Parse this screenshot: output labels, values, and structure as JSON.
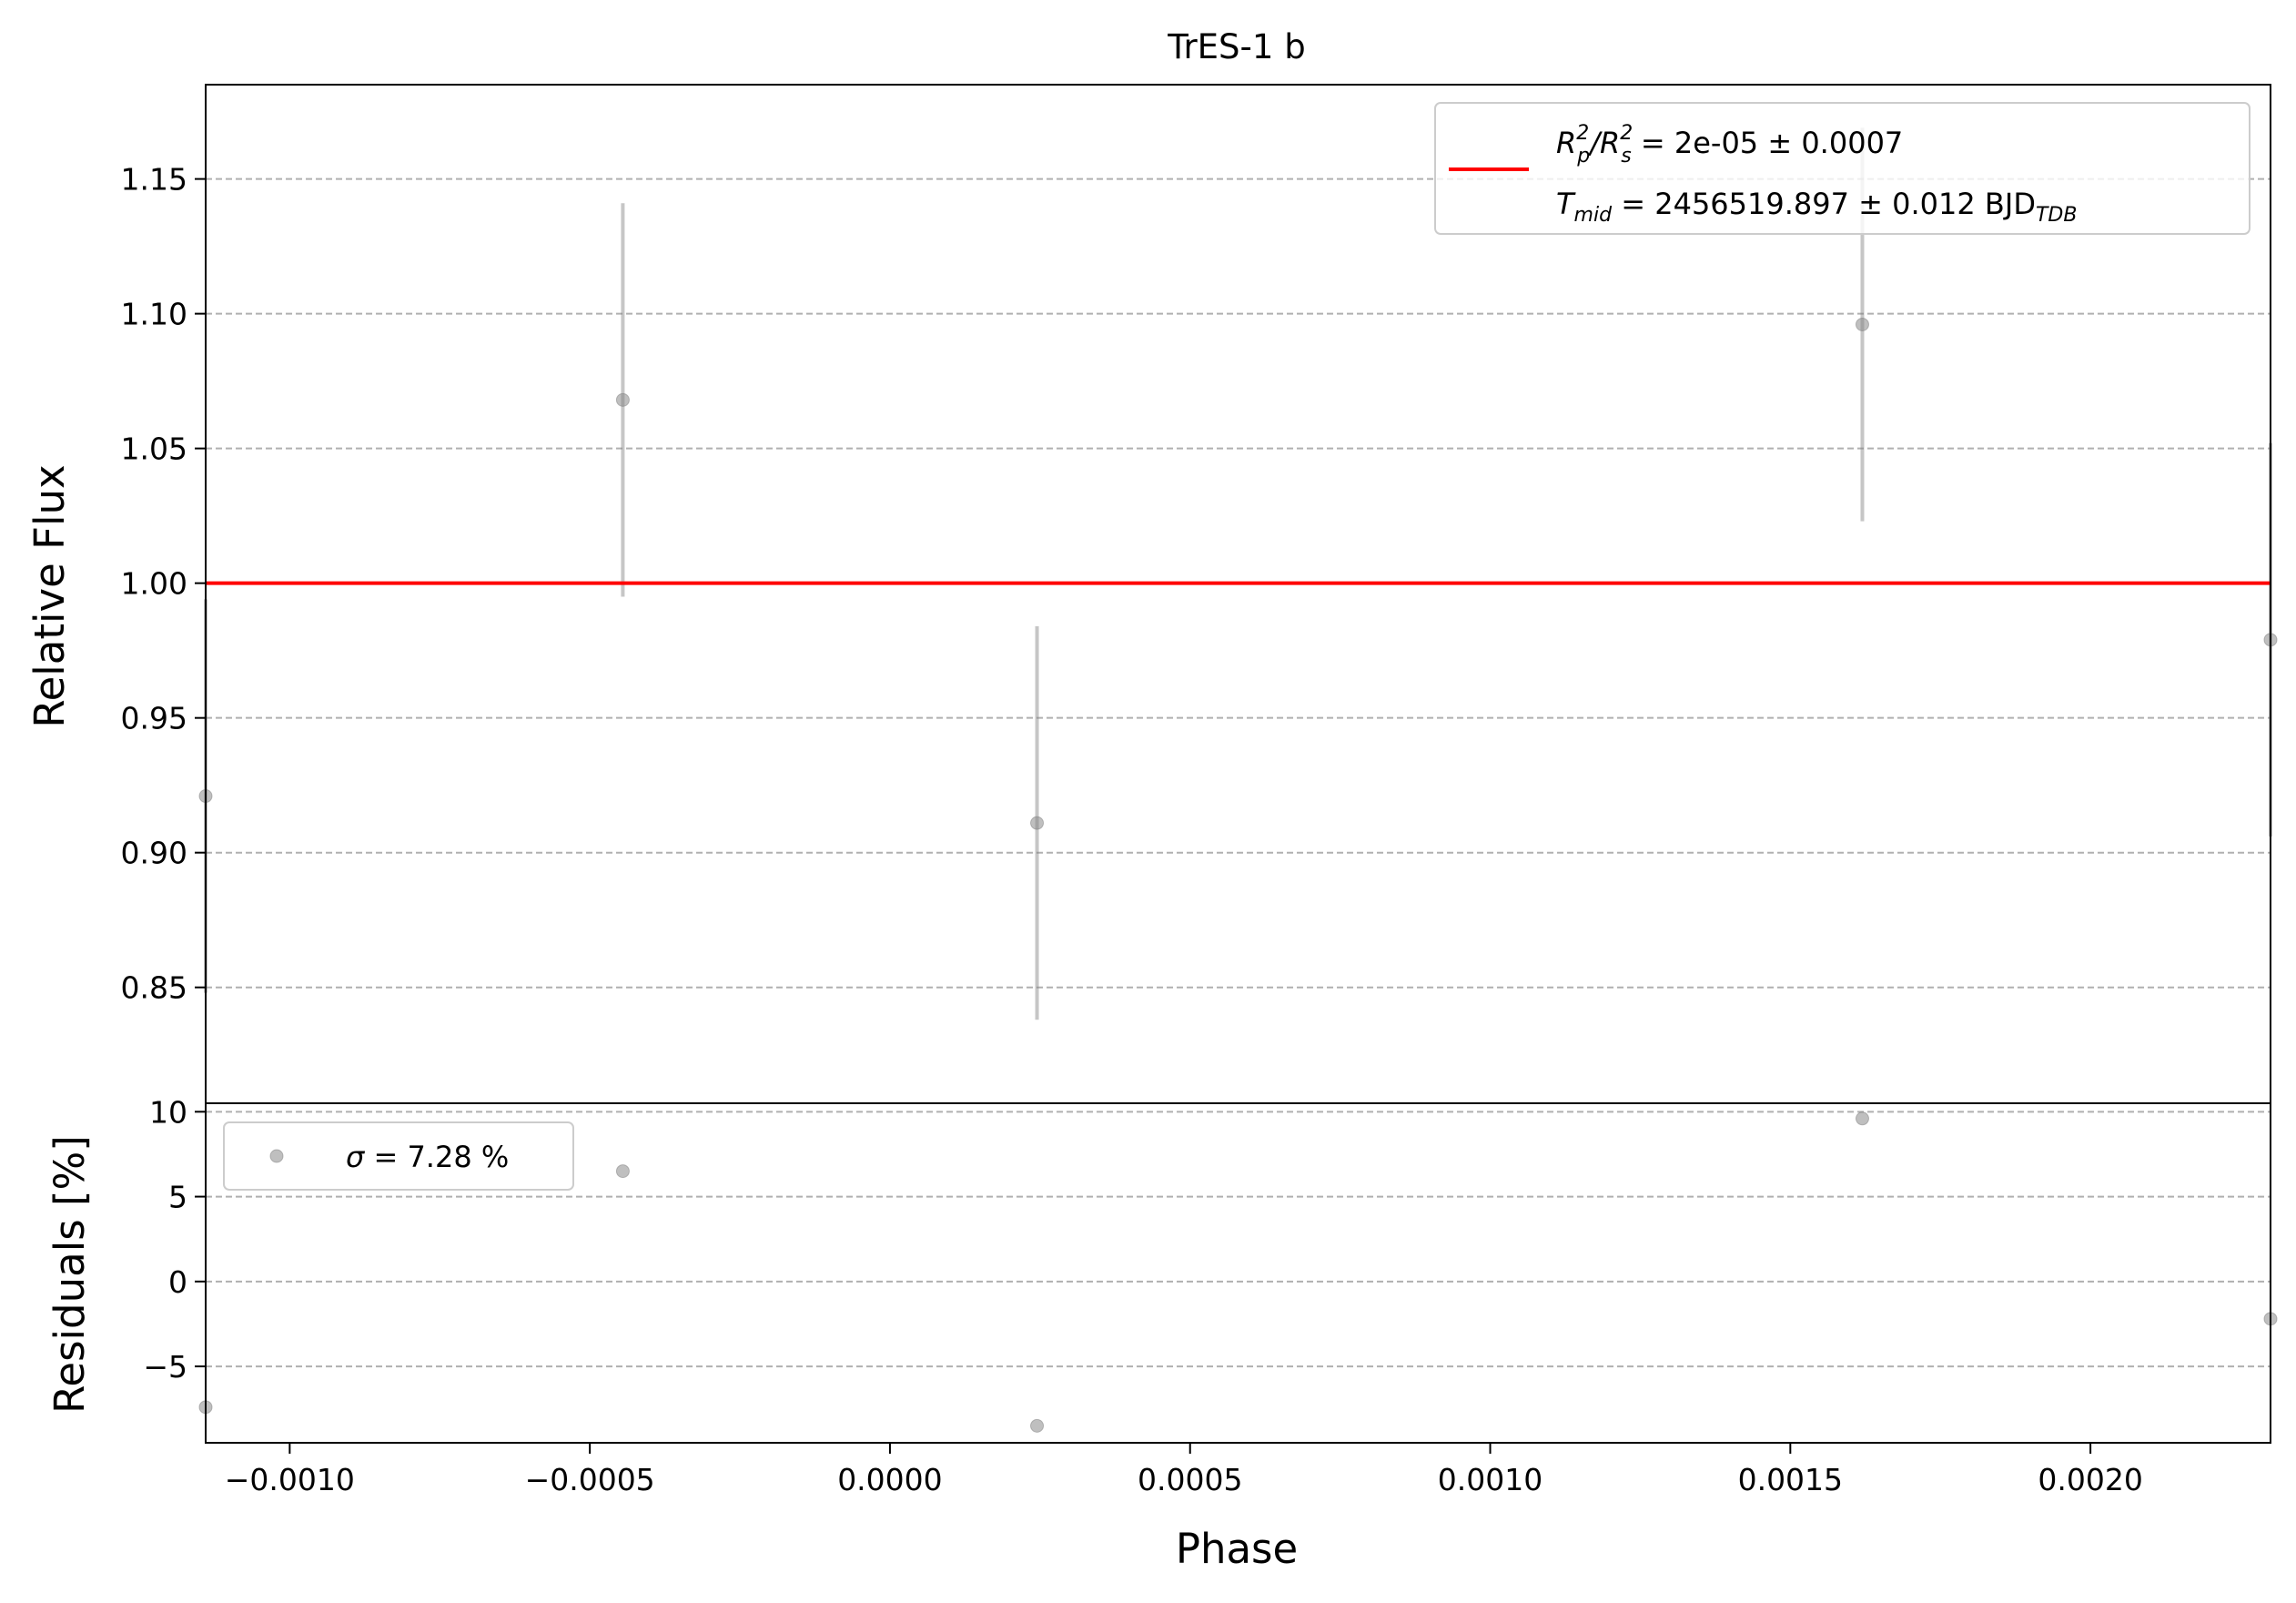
{
  "chart_data": [
    {
      "type": "scatter",
      "title": "TrES-1 b",
      "xlabel": "Phase",
      "ylabel": "Relative Flux",
      "xlim": [
        -0.00114,
        0.0023
      ],
      "ylim": [
        0.807,
        1.185
      ],
      "grid": "horizontal dashed",
      "legend_position": "upper right",
      "yticks": [
        "0.85",
        "0.90",
        "0.95",
        "1.00",
        "1.05",
        "1.10",
        "1.15"
      ],
      "ytick_values": [
        0.85,
        0.9,
        0.95,
        1.0,
        1.05,
        1.1,
        1.15
      ],
      "legend": {
        "line1": {
          "a": "R",
          "a_sup": "2",
          "a_sub": "p",
          "slash": "/R",
          "b_sup": "2",
          "b_sub": "s",
          "rest": " = 2e-05 ± 0.0007"
        },
        "line2": {
          "a": "T",
          "a_sub": "mid",
          "rest": " = 2456519.897 ± 0.012 BJD",
          "tail_sub": "TDB"
        }
      },
      "model_line": {
        "y": 1.0,
        "color": "#ff0000"
      },
      "series": [
        {
          "x": [
            -0.00114,
            -0.000445,
            0.000245,
            0.00162,
            0.0023
          ],
          "y": [
            0.921,
            1.068,
            0.911,
            1.096,
            0.979
          ],
          "yerr": [
            0.073,
            0.073,
            0.073,
            0.073,
            0.073
          ],
          "color": "#808080"
        }
      ]
    },
    {
      "type": "scatter",
      "xlabel": "Phase",
      "ylabel": "Residuals [%]",
      "xlim": [
        -0.00114,
        0.0023
      ],
      "ylim": [
        -9.5,
        10.5
      ],
      "grid": "horizontal dashed",
      "xticks": [
        "−0.0010",
        "−0.0005",
        "0.0000",
        "0.0005",
        "0.0010",
        "0.0015",
        "0.0020"
      ],
      "xtick_values": [
        -0.001,
        -0.0005,
        0.0,
        0.0005,
        0.001,
        0.0015,
        0.002
      ],
      "yticks": [
        "−5",
        "0",
        "5",
        "10"
      ],
      "ytick_values": [
        -5,
        0,
        5,
        10
      ],
      "legend_position": "upper left",
      "legend": {
        "sigma": "σ",
        "rest": " = 7.28 %"
      },
      "series": [
        {
          "x": [
            -0.00114,
            -0.000445,
            0.000245,
            0.00162,
            0.0023
          ],
          "y": [
            -7.4,
            6.5,
            -8.5,
            9.6,
            -2.2
          ],
          "color": "#808080"
        }
      ]
    }
  ]
}
